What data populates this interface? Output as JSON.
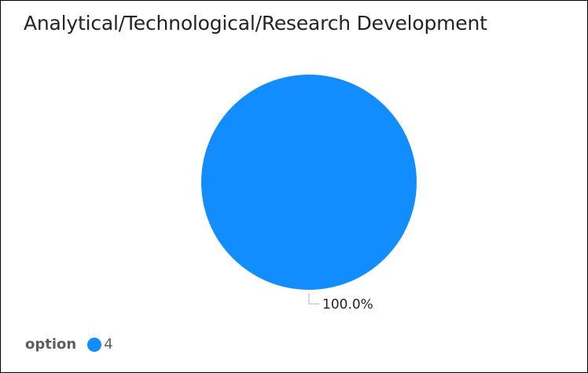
{
  "title": "Analytical/Technological/Research Development",
  "colors": {
    "slice": "#118DFF",
    "leader": "#b3b0ad",
    "label": "#252423"
  },
  "legend": {
    "title": "option",
    "items": [
      {
        "label": "4"
      }
    ]
  },
  "chart_data": {
    "type": "pie",
    "title": "Analytical/Technological/Research Development",
    "legend_position": "bottom-left",
    "categories": [
      "4"
    ],
    "values": [
      100
    ],
    "data_labels": [
      "100.0%"
    ]
  }
}
